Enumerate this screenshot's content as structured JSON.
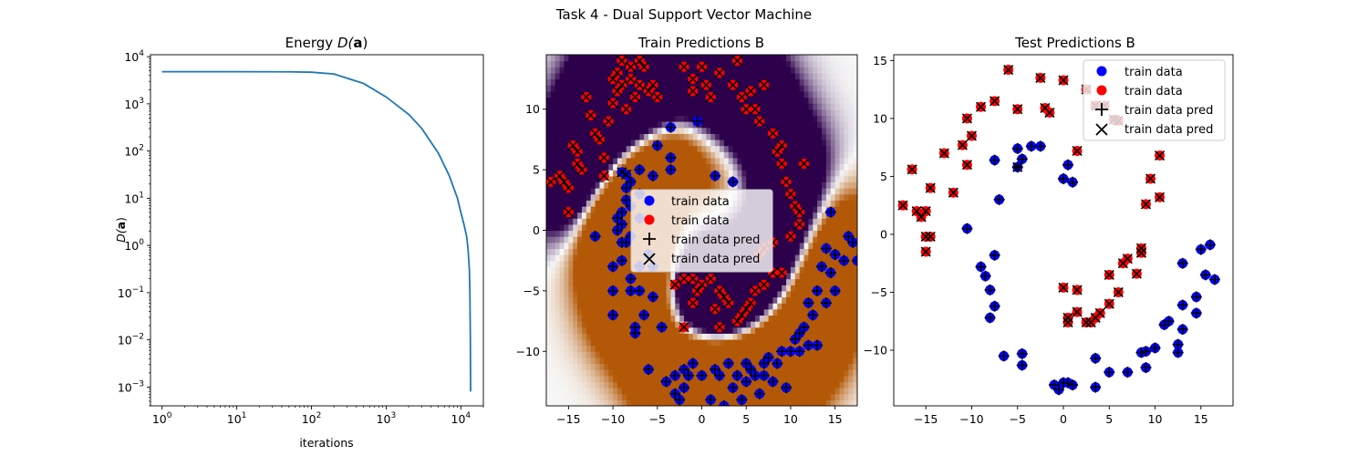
{
  "figure": {
    "suptitle": "Task 4 - Dual Support Vector Machine"
  },
  "colors": {
    "line": "#1f77b4",
    "class_pos": "#0000ff",
    "class_neg": "#ff0000",
    "marker": "#000000"
  },
  "chart_data": [
    {
      "type": "line",
      "title": "Energy D(a)",
      "title_parts": {
        "text": "Energy ",
        "math": "D(",
        "bold": "a",
        "close": ")"
      },
      "xlabel": "iterations",
      "ylabel": "D(a)",
      "ylabel_parts": {
        "math": "D(",
        "bold": "a",
        "close": ")"
      },
      "xscale": "log",
      "yscale": "log",
      "xlim": [
        0.7,
        20000
      ],
      "ylim": [
        0.0004,
        11000
      ],
      "xticks": [
        1,
        10,
        100,
        1000,
        10000
      ],
      "xticklabels": [
        {
          "base": "10",
          "exp": "0"
        },
        {
          "base": "10",
          "exp": "1"
        },
        {
          "base": "10",
          "exp": "2"
        },
        {
          "base": "10",
          "exp": "3"
        },
        {
          "base": "10",
          "exp": "4"
        }
      ],
      "yticks": [
        0.001,
        0.01,
        0.1,
        1,
        10,
        100,
        1000,
        10000
      ],
      "yticklabels": [
        {
          "base": "10",
          "exp": "−3"
        },
        {
          "base": "10",
          "exp": "−2"
        },
        {
          "base": "10",
          "exp": "−1"
        },
        {
          "base": "10",
          "exp": "0"
        },
        {
          "base": "10",
          "exp": "1"
        },
        {
          "base": "10",
          "exp": "2"
        },
        {
          "base": "10",
          "exp": "3"
        },
        {
          "base": "10",
          "exp": "4"
        }
      ],
      "series": [
        {
          "x": [
            1,
            10,
            50,
            100,
            200,
            500,
            1000,
            2000,
            3000,
            5000,
            7000,
            9000,
            10000,
            11000,
            12000,
            12500,
            13000,
            13200,
            13400,
            13500
          ],
          "y": [
            4800,
            4800,
            4780,
            4680,
            4300,
            2700,
            1400,
            600,
            300,
            90,
            30,
            10,
            5,
            2.8,
            1.5,
            0.8,
            0.3,
            0.1,
            0.01,
            0.0008
          ]
        }
      ]
    },
    {
      "type": "scatter",
      "title": "Train Predictions B",
      "xlim": [
        -17.5,
        17.5
      ],
      "ylim": [
        -14.5,
        14.5
      ],
      "xticks": [
        -15,
        -10,
        -5,
        0,
        5,
        10,
        15
      ],
      "xticklabels": [
        "−15",
        "−10",
        "−5",
        "0",
        "5",
        "10",
        "15"
      ],
      "yticks": [
        -10,
        -5,
        0,
        5,
        10
      ],
      "yticklabels": [
        "−10",
        "−5",
        "0",
        "5",
        "10"
      ],
      "background": "decision function heatmap, purple = red class, orange = blue class",
      "legend": {
        "position": "center",
        "entries": [
          "train data",
          "train data",
          "train data pred",
          "train data pred"
        ]
      },
      "blue_points": [
        [
          -12,
          -0.5
        ],
        [
          -10,
          -3
        ],
        [
          -10,
          -5
        ],
        [
          -10,
          -7
        ],
        [
          -9.5,
          1
        ],
        [
          -9.5,
          0
        ],
        [
          -9,
          1.5
        ],
        [
          -9,
          0.5
        ],
        [
          -9,
          -1
        ],
        [
          -9,
          -2.5
        ],
        [
          -8.5,
          -1
        ],
        [
          -8.5,
          2.5
        ],
        [
          -8.5,
          3.5
        ],
        [
          -8,
          4
        ],
        [
          -8,
          2
        ],
        [
          -8,
          -0.5
        ],
        [
          -8,
          -4
        ],
        [
          -8,
          -5
        ],
        [
          -7.5,
          -8
        ],
        [
          -7.5,
          -8.5
        ],
        [
          -7,
          5
        ],
        [
          -7,
          3
        ],
        [
          -7,
          1
        ],
        [
          -7,
          -3
        ],
        [
          -7,
          -5
        ],
        [
          -6.5,
          -7
        ],
        [
          -6,
          -2
        ],
        [
          -6,
          -11.5
        ],
        [
          -5.5,
          4.5
        ],
        [
          -5.5,
          -3
        ],
        [
          -5.5,
          -5.5
        ],
        [
          -5,
          7
        ],
        [
          -4.5,
          -8
        ],
        [
          -4,
          -12.5
        ],
        [
          -3.5,
          8.5
        ],
        [
          -3.5,
          6
        ],
        [
          -3.5,
          5
        ],
        [
          -3,
          -12
        ],
        [
          -3,
          -13.5
        ],
        [
          -2.5,
          -14
        ],
        [
          -2,
          -13
        ],
        [
          -2,
          -11.5
        ],
        [
          -1.5,
          -12
        ],
        [
          -1,
          -11
        ],
        [
          -0.5,
          9
        ],
        [
          0,
          -12
        ],
        [
          1,
          -14
        ],
        [
          1.5,
          4.5
        ],
        [
          1.5,
          -11.5
        ],
        [
          2,
          -12
        ],
        [
          2.5,
          -14.5
        ],
        [
          3,
          -11
        ],
        [
          3.5,
          4
        ],
        [
          3.5,
          -13
        ],
        [
          4,
          -12
        ],
        [
          4.5,
          -14
        ],
        [
          5,
          -11
        ],
        [
          5,
          -12.5
        ],
        [
          5.5,
          -11.5
        ],
        [
          6,
          -12
        ],
        [
          6.5,
          -13.5
        ],
        [
          7,
          -11
        ],
        [
          7,
          -12
        ],
        [
          7.5,
          -10.5
        ],
        [
          8,
          -12.5
        ],
        [
          8.5,
          -11
        ],
        [
          9,
          -10
        ],
        [
          9.5,
          -13
        ],
        [
          10,
          -10
        ],
        [
          10.5,
          -9
        ],
        [
          11,
          -8.5
        ],
        [
          11,
          -10
        ],
        [
          11.5,
          -8
        ],
        [
          12,
          -9.5
        ],
        [
          12,
          -6
        ],
        [
          12.5,
          -7
        ],
        [
          13,
          -9.5
        ],
        [
          13,
          -5
        ],
        [
          13.5,
          -3
        ],
        [
          14,
          -6
        ],
        [
          14,
          -1.5
        ],
        [
          14.5,
          -3.5
        ],
        [
          14.5,
          1.5
        ],
        [
          15,
          -5
        ],
        [
          15,
          -2
        ],
        [
          16,
          -2.5
        ],
        [
          16.5,
          -0.5
        ],
        [
          17,
          -1
        ],
        [
          17.5,
          -2.5
        ]
      ],
      "red_points": [
        [
          -17,
          4
        ],
        [
          -16,
          4.5
        ],
        [
          -15.5,
          4
        ],
        [
          -15,
          1.5
        ],
        [
          -15,
          3.5
        ],
        [
          -14.5,
          7
        ],
        [
          -14,
          6.5
        ],
        [
          -14,
          5.5
        ],
        [
          -13.5,
          5
        ],
        [
          -13,
          11
        ],
        [
          -12.5,
          9.5
        ],
        [
          -12,
          8
        ],
        [
          -11.5,
          7.5
        ],
        [
          -11,
          6
        ],
        [
          -11,
          4.5
        ],
        [
          -10.5,
          9
        ],
        [
          -10,
          12.5
        ],
        [
          -10,
          10.5
        ],
        [
          -9.5,
          13
        ],
        [
          -9.5,
          11.5
        ],
        [
          -9,
          14
        ],
        [
          -9,
          12
        ],
        [
          -8.5,
          10
        ],
        [
          -8,
          13.5
        ],
        [
          -8,
          12.5
        ],
        [
          -7.5,
          11
        ],
        [
          -7,
          14
        ],
        [
          -7,
          12
        ],
        [
          -6.5,
          13.5
        ],
        [
          -6,
          11.5
        ],
        [
          -5.5,
          12
        ],
        [
          -5,
          11
        ],
        [
          -2,
          13.5
        ],
        [
          -1,
          12.5
        ],
        [
          -1,
          11.5
        ],
        [
          0,
          13.5
        ],
        [
          0.5,
          12
        ],
        [
          1,
          11
        ],
        [
          2,
          13
        ],
        [
          3.5,
          12
        ],
        [
          4,
          14
        ],
        [
          4.5,
          11
        ],
        [
          5,
          10
        ],
        [
          5.5,
          11.5
        ],
        [
          6,
          10
        ],
        [
          6.5,
          9
        ],
        [
          7,
          12
        ],
        [
          8,
          8
        ],
        [
          8.5,
          6.5
        ],
        [
          9,
          7
        ],
        [
          9,
          5.5
        ],
        [
          9.5,
          4
        ],
        [
          10,
          3
        ],
        [
          10.5,
          2
        ],
        [
          11,
          0.5
        ],
        [
          11,
          1.5
        ],
        [
          11.5,
          5.5
        ],
        [
          10,
          -0.5
        ],
        [
          8,
          -1
        ],
        [
          7,
          -1.5
        ],
        [
          6.5,
          -2
        ],
        [
          8,
          -3.5
        ],
        [
          9,
          -3.5
        ],
        [
          7,
          -4.5
        ],
        [
          6,
          -5
        ],
        [
          5.5,
          -6
        ],
        [
          5,
          -6.5
        ],
        [
          4.5,
          -7
        ],
        [
          4,
          -7.5
        ],
        [
          3,
          -6
        ],
        [
          2.5,
          -5.5
        ],
        [
          2,
          -5
        ],
        [
          1,
          -4
        ],
        [
          0,
          -4.5
        ],
        [
          -0.5,
          -5
        ],
        [
          -1,
          -4
        ],
        [
          -2,
          -4
        ],
        [
          -3,
          -4.5
        ],
        [
          -2,
          -8
        ],
        [
          2,
          -8
        ],
        [
          -1,
          -6
        ],
        [
          1.5,
          -6.5
        ]
      ],
      "misclassified_points": [
        [
          -9,
          4.8
        ],
        [
          -8.5,
          4.6
        ]
      ]
    },
    {
      "type": "scatter",
      "title": "Test Predictions B",
      "xlim": [
        -18.5,
        18.5
      ],
      "ylim": [
        -14.8,
        15.5
      ],
      "xticks": [
        -15,
        -10,
        -5,
        0,
        5,
        10,
        15
      ],
      "xticklabels": [
        "−15",
        "−10",
        "−5",
        "0",
        "5",
        "10",
        "15"
      ],
      "yticks": [
        -10,
        -5,
        0,
        5,
        10,
        15
      ],
      "yticklabels": [
        "−10",
        "−5",
        "0",
        "5",
        "10",
        "15"
      ],
      "legend": {
        "position": "upper right",
        "entries": [
          "train data",
          "train data",
          "train data pred",
          "train data pred"
        ]
      },
      "blue_points": [
        [
          -10.5,
          0.5
        ],
        [
          -9,
          -2.8
        ],
        [
          -8.5,
          -3.6
        ],
        [
          -8,
          -4.8
        ],
        [
          -8,
          -7.2
        ],
        [
          -7.5,
          -6.2
        ],
        [
          -7.5,
          -1.8
        ],
        [
          -7.5,
          6.4
        ],
        [
          -7,
          3
        ],
        [
          -6.5,
          -10.5
        ],
        [
          -5,
          7.4
        ],
        [
          -5,
          5.8
        ],
        [
          -4.5,
          6.5
        ],
        [
          -4.5,
          -10.3
        ],
        [
          -4.5,
          -11.3
        ],
        [
          -3.5,
          7.6
        ],
        [
          -2.5,
          7.6
        ],
        [
          -1,
          -13
        ],
        [
          -0.5,
          -13.4
        ],
        [
          0,
          -12.8
        ],
        [
          0.5,
          -12.8
        ],
        [
          0,
          4.8
        ],
        [
          0.5,
          6
        ],
        [
          1,
          4.5
        ],
        [
          1,
          -13
        ],
        [
          3.5,
          -13.2
        ],
        [
          3.5,
          -10.7
        ],
        [
          5,
          -11.9
        ],
        [
          7,
          -11.9
        ],
        [
          8.5,
          -10.2
        ],
        [
          9,
          -10.1
        ],
        [
          9,
          -11.5
        ],
        [
          10,
          -9.8
        ],
        [
          11,
          -7.8
        ],
        [
          11.5,
          -7.5
        ],
        [
          12.5,
          -10.2
        ],
        [
          12.5,
          -9.5
        ],
        [
          13,
          -8.2
        ],
        [
          13,
          -6.1
        ],
        [
          13,
          -2.5
        ],
        [
          14.5,
          -5.4
        ],
        [
          14.5,
          -6.8
        ],
        [
          15,
          -1.3
        ],
        [
          15.5,
          -3.5
        ],
        [
          16,
          -0.9
        ],
        [
          16.5,
          -3.9
        ]
      ],
      "red_points": [
        [
          -17.5,
          2.5
        ],
        [
          -16.5,
          5.6
        ],
        [
          -16,
          2
        ],
        [
          -15.5,
          1.5
        ],
        [
          -15,
          2
        ],
        [
          -15,
          -0.2
        ],
        [
          -15,
          -1.5
        ],
        [
          -14.5,
          -0.2
        ],
        [
          -14.5,
          4
        ],
        [
          -13,
          7
        ],
        [
          -12,
          3.6
        ],
        [
          -11,
          7.7
        ],
        [
          -10.5,
          6
        ],
        [
          -10.5,
          10
        ],
        [
          -10,
          8.5
        ],
        [
          -9,
          11
        ],
        [
          -7.5,
          11.5
        ],
        [
          -6,
          14.2
        ],
        [
          -5,
          10.8
        ],
        [
          -2.5,
          13.5
        ],
        [
          -2,
          10.9
        ],
        [
          -1.5,
          10.5
        ],
        [
          0,
          13.3
        ],
        [
          1.5,
          7.2
        ],
        [
          2.5,
          12.5
        ],
        [
          3.5,
          11.1
        ],
        [
          4.5,
          11.1
        ],
        [
          5.5,
          9.9
        ],
        [
          6,
          9.8
        ],
        [
          10.5,
          6.8
        ],
        [
          10.5,
          3.2
        ],
        [
          9.5,
          4.8
        ],
        [
          9,
          2.6
        ],
        [
          8.5,
          -1.2
        ],
        [
          8.5,
          -1.6
        ],
        [
          8,
          -3.4
        ],
        [
          7,
          -2.1
        ],
        [
          6.5,
          -2.5
        ],
        [
          6,
          -5
        ],
        [
          5,
          -3.5
        ],
        [
          5,
          -6
        ],
        [
          4,
          -6.8
        ],
        [
          3.5,
          -7.2
        ],
        [
          3,
          -7.6
        ],
        [
          2.5,
          -7.6
        ],
        [
          1.5,
          -6.7
        ],
        [
          1.5,
          -4.8
        ],
        [
          0.5,
          -7.6
        ],
        [
          0,
          -4.6
        ],
        [
          0.5,
          -7.2
        ]
      ],
      "misclassified_points": [
        [
          -5,
          5.8
        ]
      ]
    }
  ]
}
